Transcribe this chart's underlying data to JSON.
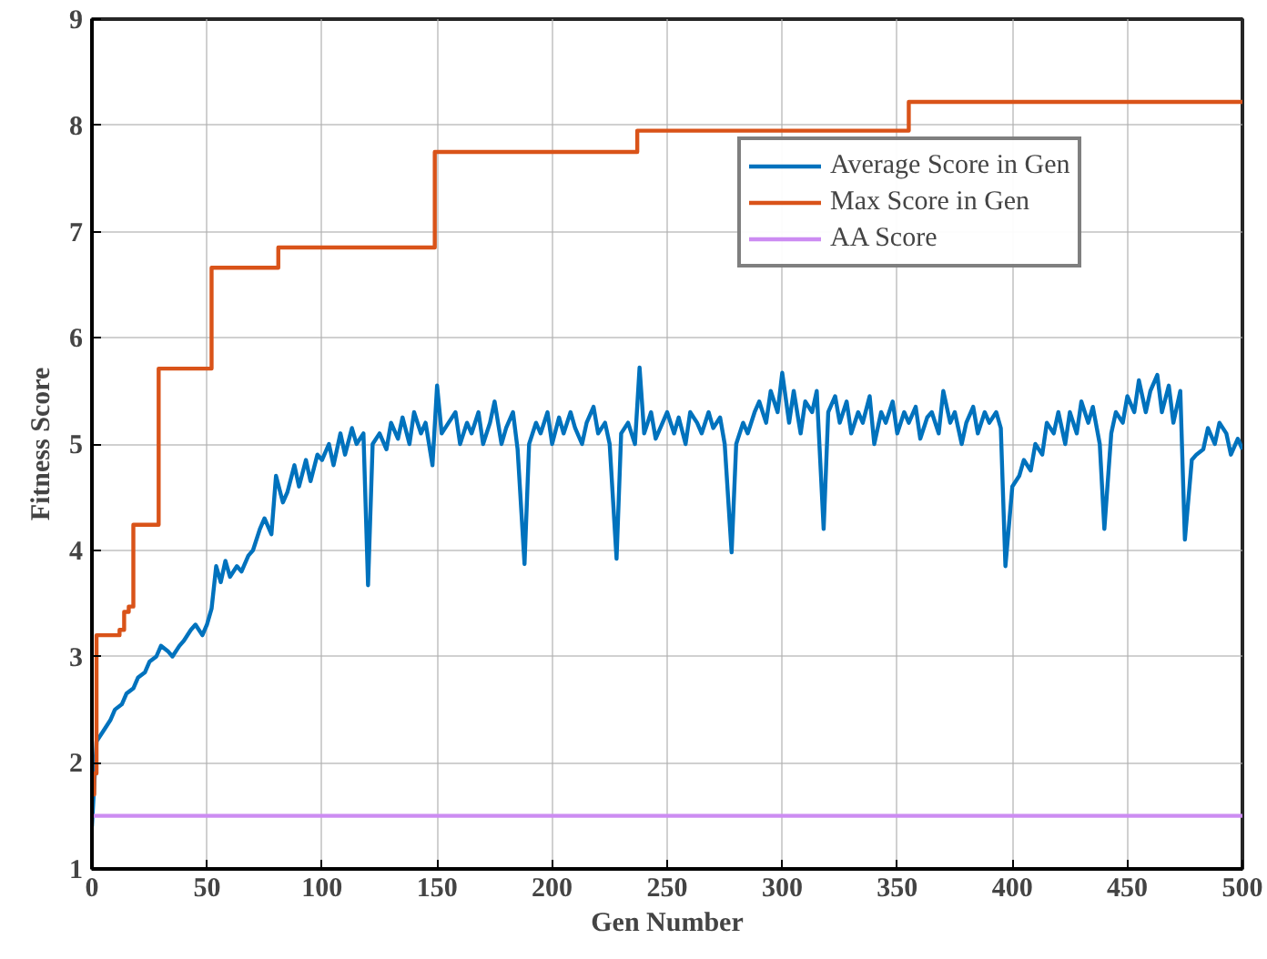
{
  "chart_data": {
    "type": "line",
    "xlabel": "Gen Number",
    "ylabel": "Fitness Score",
    "xlim": [
      0,
      500
    ],
    "ylim": [
      1,
      9
    ],
    "xticks": [
      0,
      50,
      100,
      150,
      200,
      250,
      300,
      350,
      400,
      450,
      500
    ],
    "yticks": [
      1,
      2,
      3,
      4,
      5,
      6,
      7,
      8,
      9
    ],
    "grid": true,
    "legend": "top right",
    "line_style": "solid",
    "marker": "none",
    "series": [
      {
        "name": "Average Score in Gen",
        "color": "#0072bd",
        "x": [
          0,
          2,
          5,
          8,
          10,
          13,
          15,
          18,
          20,
          23,
          25,
          28,
          30,
          33,
          35,
          38,
          40,
          43,
          45,
          48,
          50,
          52,
          54,
          56,
          58,
          60,
          63,
          65,
          68,
          70,
          73,
          75,
          78,
          80,
          83,
          85,
          88,
          90,
          93,
          95,
          98,
          100,
          103,
          105,
          108,
          110,
          113,
          115,
          118,
          120,
          122,
          125,
          128,
          130,
          133,
          135,
          138,
          140,
          143,
          145,
          148,
          150,
          152,
          155,
          158,
          160,
          163,
          165,
          168,
          170,
          173,
          175,
          178,
          180,
          183,
          185,
          188,
          190,
          193,
          195,
          198,
          200,
          203,
          205,
          208,
          210,
          213,
          215,
          218,
          220,
          223,
          225,
          228,
          230,
          233,
          236,
          238,
          240,
          243,
          245,
          248,
          250,
          253,
          255,
          258,
          260,
          263,
          265,
          268,
          270,
          273,
          275,
          278,
          280,
          283,
          285,
          288,
          290,
          293,
          295,
          298,
          300,
          303,
          305,
          308,
          310,
          313,
          315,
          318,
          320,
          323,
          325,
          328,
          330,
          333,
          335,
          338,
          340,
          343,
          345,
          348,
          350,
          353,
          355,
          358,
          360,
          363,
          365,
          368,
          370,
          373,
          375,
          378,
          380,
          383,
          385,
          388,
          390,
          393,
          395,
          397,
          400,
          403,
          405,
          408,
          410,
          413,
          415,
          418,
          420,
          423,
          425,
          428,
          430,
          433,
          435,
          438,
          440,
          443,
          445,
          448,
          450,
          453,
          455,
          458,
          460,
          463,
          465,
          468,
          470,
          473,
          475,
          478,
          480,
          483,
          485,
          488,
          490,
          493,
          495,
          498,
          500
        ],
        "values": [
          1.4,
          2.2,
          2.3,
          2.4,
          2.5,
          2.55,
          2.65,
          2.7,
          2.8,
          2.85,
          2.95,
          3.0,
          3.1,
          3.05,
          3.0,
          3.1,
          3.15,
          3.25,
          3.3,
          3.2,
          3.3,
          3.45,
          3.85,
          3.7,
          3.9,
          3.75,
          3.85,
          3.8,
          3.95,
          4.0,
          4.2,
          4.3,
          4.15,
          4.7,
          4.45,
          4.55,
          4.8,
          4.6,
          4.85,
          4.65,
          4.9,
          4.85,
          5.0,
          4.8,
          5.1,
          4.9,
          5.15,
          5.0,
          5.1,
          3.67,
          5.0,
          5.1,
          4.95,
          5.2,
          5.05,
          5.25,
          5.0,
          5.3,
          5.1,
          5.2,
          4.8,
          5.55,
          5.1,
          5.2,
          5.3,
          5.0,
          5.2,
          5.1,
          5.3,
          5.0,
          5.2,
          5.4,
          5.0,
          5.15,
          5.3,
          4.95,
          3.87,
          5.0,
          5.2,
          5.1,
          5.3,
          5.0,
          5.25,
          5.1,
          5.3,
          5.15,
          5.0,
          5.2,
          5.35,
          5.1,
          5.2,
          5.0,
          3.92,
          5.1,
          5.2,
          5.0,
          5.72,
          5.1,
          5.3,
          5.05,
          5.2,
          5.3,
          5.1,
          5.25,
          5.0,
          5.3,
          5.2,
          5.1,
          5.3,
          5.15,
          5.25,
          5.0,
          3.98,
          5.0,
          5.2,
          5.1,
          5.3,
          5.4,
          5.2,
          5.5,
          5.3,
          5.67,
          5.2,
          5.5,
          5.1,
          5.4,
          5.3,
          5.5,
          4.2,
          5.3,
          5.45,
          5.2,
          5.4,
          5.1,
          5.3,
          5.2,
          5.45,
          5.0,
          5.3,
          5.2,
          5.4,
          5.1,
          5.3,
          5.2,
          5.35,
          5.05,
          5.25,
          5.3,
          5.1,
          5.5,
          5.2,
          5.3,
          5.0,
          5.2,
          5.35,
          5.1,
          5.3,
          5.2,
          5.3,
          5.15,
          3.85,
          4.6,
          4.7,
          4.85,
          4.75,
          5.0,
          4.9,
          5.2,
          5.1,
          5.3,
          5.0,
          5.3,
          5.1,
          5.4,
          5.2,
          5.35,
          5.0,
          4.2,
          5.1,
          5.3,
          5.2,
          5.45,
          5.3,
          5.6,
          5.3,
          5.5,
          5.65,
          5.3,
          5.55,
          5.2,
          5.5,
          4.1,
          4.85,
          4.9,
          4.95,
          5.15,
          5.0,
          5.2,
          5.1,
          4.9,
          5.05,
          4.95
        ]
      },
      {
        "name": "Max Score in Gen",
        "color": "#d95319",
        "type": "step",
        "x": [
          0,
          1,
          2,
          12,
          14,
          16,
          18,
          29,
          52,
          81,
          149,
          237,
          355,
          500
        ],
        "values": [
          1.7,
          1.9,
          3.2,
          3.25,
          3.42,
          3.47,
          4.24,
          5.71,
          6.66,
          6.85,
          7.75,
          7.95,
          8.22,
          8.22
        ]
      },
      {
        "name": "AA Score",
        "color": "#cc8cf2",
        "x": [
          0,
          500
        ],
        "values": [
          1.5,
          1.5
        ]
      }
    ]
  }
}
